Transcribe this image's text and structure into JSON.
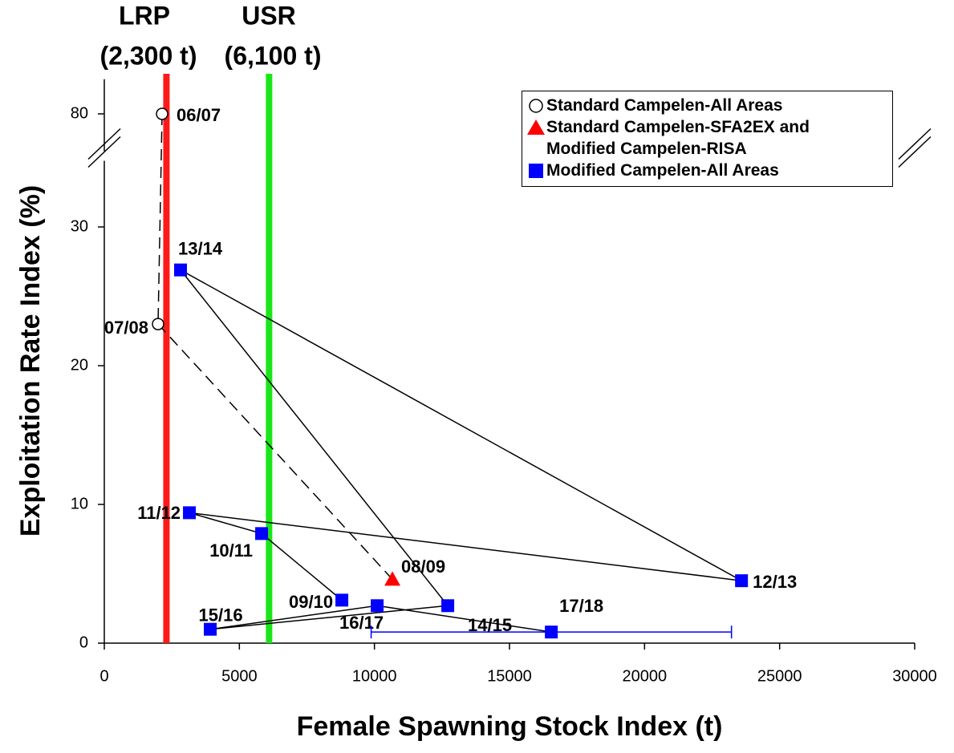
{
  "chart_data": {
    "type": "scatter",
    "xlabel": "Female Spawning Stock Index (t)",
    "ylabel": "Exploitation Rate Index (%)",
    "xlim": [
      0,
      30000
    ],
    "xticks": [
      0,
      5000,
      10000,
      15000,
      20000,
      25000,
      30000
    ],
    "ylim": [
      0,
      82.5
    ],
    "ybreak": [
      35,
      78
    ],
    "yticks": [
      0,
      10,
      20,
      30,
      80
    ],
    "reference_lines": [
      {
        "label": "LRP",
        "sublabel": "(2,300 t)",
        "value": 2300,
        "color": "#ff1a1a"
      },
      {
        "label": "USR",
        "sublabel": "(6,100 t)",
        "value": 6100,
        "color": "#19e619"
      }
    ],
    "series": [
      {
        "name": "Standard Campelen-All Areas",
        "marker": "circle",
        "color": "#ffffff",
        "line": "dashed",
        "labels": [
          "06/07",
          "07/08"
        ],
        "x": [
          2139,
          1990
        ],
        "values": [
          80,
          23.0
        ]
      },
      {
        "name": "Standard Campelen-SFA2EX and Modified Campelen-RISA",
        "marker": "triangle",
        "color": "#ff0000",
        "labels": [
          "08/09"
        ],
        "x": [
          10665
        ],
        "values": [
          4.6
        ]
      },
      {
        "name": "Modified Campelen-All Areas",
        "marker": "square",
        "color": "#0000ff",
        "line": "solid",
        "labels": [
          "09/10",
          "10/11",
          "11/12",
          "12/13",
          "13/14",
          "14/15",
          "15/16",
          "16/17",
          "17/18"
        ],
        "label_colors": [
          null,
          null,
          null,
          null,
          null,
          null,
          null,
          null,
          "#0000ff"
        ],
        "x": [
          8794,
          5823,
          3150,
          23589,
          2822,
          12715,
          3922,
          10101,
          16548
        ],
        "values": [
          3.1,
          7.9,
          9.4,
          4.5,
          26.9,
          2.7,
          1.0,
          2.7,
          0.8
        ],
        "xerr": [
          null,
          null,
          null,
          null,
          null,
          null,
          null,
          null,
          6670
        ]
      }
    ]
  }
}
